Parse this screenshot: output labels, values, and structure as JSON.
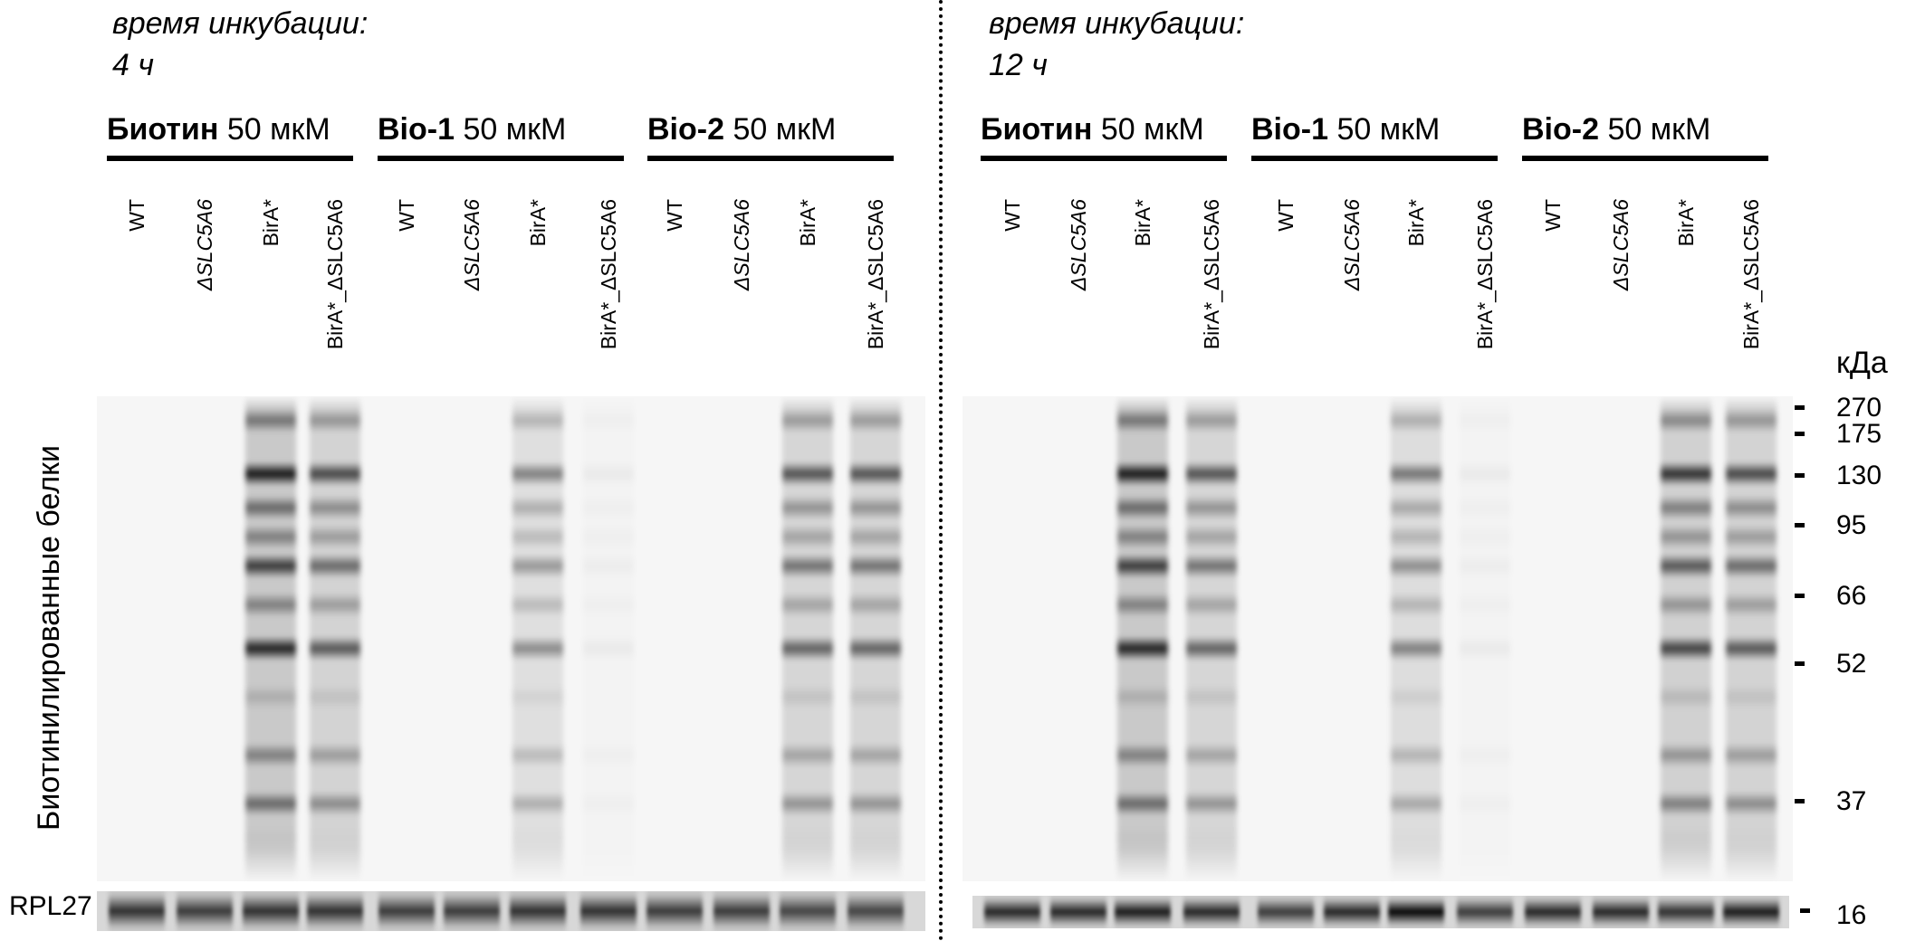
{
  "panels": [
    {
      "incubation_label": "время инкубации:",
      "incubation_time": "4 ч",
      "groups": [
        {
          "name": "Биотин",
          "conc": "50 мкМ"
        },
        {
          "name": "Bio-1",
          "conc": "50 мкМ"
        },
        {
          "name": "Bio-2",
          "conc": "50 мкМ"
        }
      ],
      "lane_signal": [
        0,
        0,
        1.0,
        0.75,
        0,
        0,
        0.5,
        0.05,
        0,
        0,
        0.7,
        0.7
      ],
      "loading_signal": [
        0.8,
        0.75,
        0.8,
        0.8,
        0.75,
        0.75,
        0.8,
        0.8,
        0.75,
        0.75,
        0.7,
        0.7
      ]
    },
    {
      "incubation_label": "время инкубации:",
      "incubation_time": "12 ч",
      "groups": [
        {
          "name": "Биотин",
          "conc": "50 мкМ"
        },
        {
          "name": "Bio-1",
          "conc": "50 мкМ"
        },
        {
          "name": "Bio-2",
          "conc": "50 мкМ"
        }
      ],
      "lane_signal": [
        0,
        0,
        1.0,
        0.7,
        0,
        0,
        0.55,
        0.05,
        0,
        0,
        0.85,
        0.75
      ],
      "loading_signal": [
        0.85,
        0.85,
        0.9,
        0.85,
        0.75,
        0.85,
        1.0,
        0.75,
        0.85,
        0.85,
        0.8,
        0.9
      ]
    }
  ],
  "lane_labels": [
    {
      "text": "WT",
      "italic": false
    },
    {
      "text": "ΔSLC5A6",
      "italic": true
    },
    {
      "text": "BirA*",
      "italic": false
    },
    {
      "text": "BirA*_ΔSLC5A6",
      "italic": false
    }
  ],
  "y_label": "Биотинилированные белки",
  "loading_control": "RPL27",
  "mw_unit": "кДа",
  "mw_markers": [
    "270",
    "175",
    "130",
    "95",
    "66",
    "52",
    "37"
  ],
  "mw_loading_marker": "16"
}
